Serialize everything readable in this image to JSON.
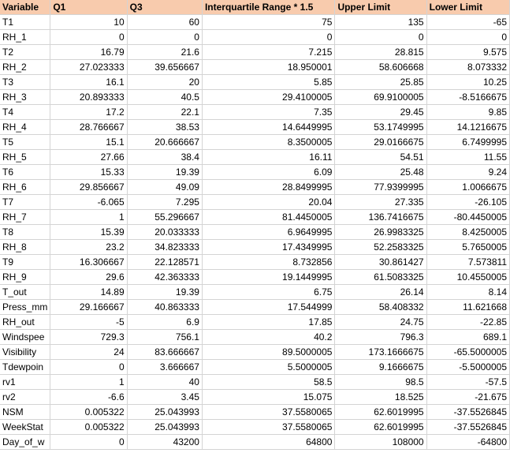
{
  "header": [
    "Variable",
    "Q1",
    "Q3",
    "Interquartile Range * 1.5",
    "Upper Limit",
    "Lower Limit"
  ],
  "rows": [
    [
      "T1",
      "10",
      "60",
      "75",
      "135",
      "-65"
    ],
    [
      "RH_1",
      "0",
      "0",
      "0",
      "0",
      "0"
    ],
    [
      "T2",
      "16.79",
      "21.6",
      "7.215",
      "28.815",
      "9.575"
    ],
    [
      "RH_2",
      "27.023333",
      "39.656667",
      "18.950001",
      "58.606668",
      "8.073332"
    ],
    [
      "T3",
      "16.1",
      "20",
      "5.85",
      "25.85",
      "10.25"
    ],
    [
      "RH_3",
      "20.893333",
      "40.5",
      "29.4100005",
      "69.9100005",
      "-8.5166675"
    ],
    [
      "T4",
      "17.2",
      "22.1",
      "7.35",
      "29.45",
      "9.85"
    ],
    [
      "RH_4",
      "28.766667",
      "38.53",
      "14.6449995",
      "53.1749995",
      "14.1216675"
    ],
    [
      "T5",
      "15.1",
      "20.666667",
      "8.3500005",
      "29.0166675",
      "6.7499995"
    ],
    [
      "RH_5",
      "27.66",
      "38.4",
      "16.11",
      "54.51",
      "11.55"
    ],
    [
      "T6",
      "15.33",
      "19.39",
      "6.09",
      "25.48",
      "9.24"
    ],
    [
      "RH_6",
      "29.856667",
      "49.09",
      "28.8499995",
      "77.9399995",
      "1.0066675"
    ],
    [
      "T7",
      "-6.065",
      "7.295",
      "20.04",
      "27.335",
      "-26.105"
    ],
    [
      "RH_7",
      "1",
      "55.296667",
      "81.4450005",
      "136.7416675",
      "-80.4450005"
    ],
    [
      "T8",
      "15.39",
      "20.033333",
      "6.9649995",
      "26.9983325",
      "8.4250005"
    ],
    [
      "RH_8",
      "23.2",
      "34.823333",
      "17.4349995",
      "52.2583325",
      "5.7650005"
    ],
    [
      "T9",
      "16.306667",
      "22.128571",
      "8.732856",
      "30.861427",
      "7.573811"
    ],
    [
      "RH_9",
      "29.6",
      "42.363333",
      "19.1449995",
      "61.5083325",
      "10.4550005"
    ],
    [
      "T_out",
      "14.89",
      "19.39",
      "6.75",
      "26.14",
      "8.14"
    ],
    [
      "Press_mm",
      "29.166667",
      "40.863333",
      "17.544999",
      "58.408332",
      "11.621668"
    ],
    [
      "RH_out",
      "-5",
      "6.9",
      "17.85",
      "24.75",
      "-22.85"
    ],
    [
      "Windspee",
      "729.3",
      "756.1",
      "40.2",
      "796.3",
      "689.1"
    ],
    [
      "Visibility",
      "24",
      "83.666667",
      "89.5000005",
      "173.1666675",
      "-65.5000005"
    ],
    [
      "Tdewpoin",
      "0",
      "3.666667",
      "5.5000005",
      "9.1666675",
      "-5.5000005"
    ],
    [
      "rv1",
      "1",
      "40",
      "58.5",
      "98.5",
      "-57.5"
    ],
    [
      "rv2",
      "-6.6",
      "3.45",
      "15.075",
      "18.525",
      "-21.675"
    ],
    [
      "NSM",
      "0.005322",
      "25.043993",
      "37.5580065",
      "62.6019995",
      "-37.5526845"
    ],
    [
      "WeekStat",
      "0.005322",
      "25.043993",
      "37.5580065",
      "62.6019995",
      "-37.5526845"
    ],
    [
      "Day_of_w",
      "0",
      "43200",
      "64800",
      "108000",
      "-64800"
    ]
  ],
  "colors": {
    "header_fill": "#f8cbad",
    "gridline": "#d4d4d4"
  }
}
